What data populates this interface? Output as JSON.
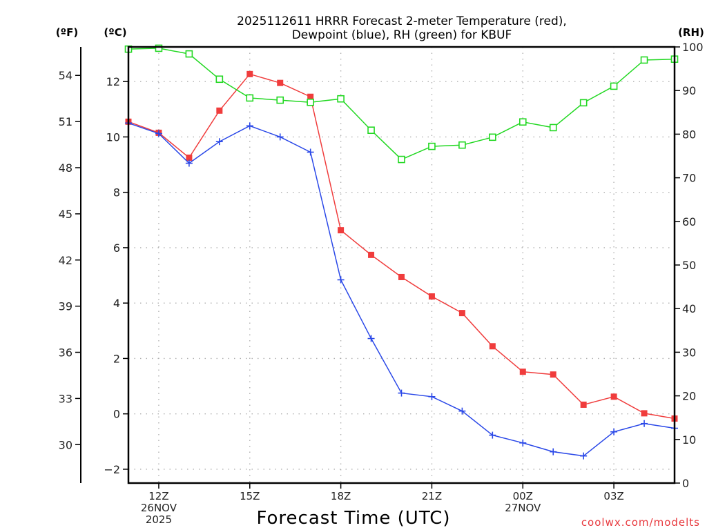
{
  "chart_data": {
    "type": "line",
    "title": "2025112611 HRRR Forecast 2-meter Temperature (red),",
    "subtitle": "Dewpoint (blue), RH (green) for KBUF",
    "xlabel": "Forecast Time (UTC)",
    "x": [
      "11Z",
      "12Z",
      "13Z",
      "14Z",
      "15Z",
      "16Z",
      "17Z",
      "18Z",
      "19Z",
      "20Z",
      "21Z",
      "22Z",
      "23Z",
      "00Z",
      "01Z",
      "02Z",
      "03Z",
      "04Z",
      "05Z"
    ],
    "x_hours": [
      11,
      12,
      13,
      14,
      15,
      16,
      17,
      18,
      19,
      20,
      21,
      22,
      23,
      24,
      25,
      26,
      27,
      28,
      29
    ],
    "xlim_hours": [
      11,
      29
    ],
    "x_ticks": [
      {
        "hour": 12,
        "label": "12Z",
        "sub1": "26NOV",
        "sub2": "2025"
      },
      {
        "hour": 15,
        "label": "15Z",
        "sub1": "",
        "sub2": ""
      },
      {
        "hour": 18,
        "label": "18Z",
        "sub1": "",
        "sub2": ""
      },
      {
        "hour": 21,
        "label": "21Z",
        "sub1": "",
        "sub2": ""
      },
      {
        "hour": 24,
        "label": "00Z",
        "sub1": "27NOV",
        "sub2": ""
      },
      {
        "hour": 27,
        "label": "03Z",
        "sub1": "",
        "sub2": ""
      }
    ],
    "axes": {
      "celsius": {
        "unit_label": "(ºC)",
        "ylim": [
          -2.5,
          13.25
        ],
        "ticks": [
          -2,
          0,
          2,
          4,
          6,
          8,
          10,
          12
        ]
      },
      "fahrenheit": {
        "unit_label": "(ºF)",
        "ticks": [
          30,
          33,
          36,
          39,
          42,
          45,
          48,
          51,
          54
        ]
      },
      "rh": {
        "unit_label": "(RH)",
        "ylim": [
          0,
          100
        ],
        "ticks": [
          0,
          10,
          20,
          30,
          40,
          50,
          60,
          70,
          80,
          90,
          100
        ]
      }
    },
    "grid": true,
    "series": [
      {
        "name": "Temperature",
        "axis": "celsius",
        "color": "#f03c3c",
        "marker": "filled-square",
        "values": [
          10.55,
          10.15,
          9.25,
          10.95,
          12.27,
          11.95,
          11.45,
          6.63,
          5.74,
          4.94,
          4.24,
          3.64,
          2.44,
          1.52,
          1.42,
          0.33,
          0.62,
          0.02,
          -0.17
        ]
      },
      {
        "name": "Dewpoint",
        "axis": "celsius",
        "color": "#2a48e8",
        "marker": "plus",
        "values": [
          10.5,
          10.12,
          9.05,
          9.83,
          10.4,
          10.0,
          9.45,
          4.84,
          2.72,
          0.75,
          0.62,
          0.1,
          -0.77,
          -1.05,
          -1.37,
          -1.52,
          -0.65,
          -0.35,
          -0.52
        ]
      },
      {
        "name": "RH",
        "axis": "rh",
        "color": "#22d822",
        "marker": "open-square",
        "values": [
          99.5,
          99.7,
          98.4,
          92.6,
          88.3,
          87.8,
          87.3,
          88.1,
          80.9,
          74.2,
          77.2,
          77.5,
          79.3,
          82.8,
          81.5,
          87.2,
          91.0,
          97.0,
          97.2
        ]
      }
    ],
    "credit": "coolwx.com/modelts"
  }
}
